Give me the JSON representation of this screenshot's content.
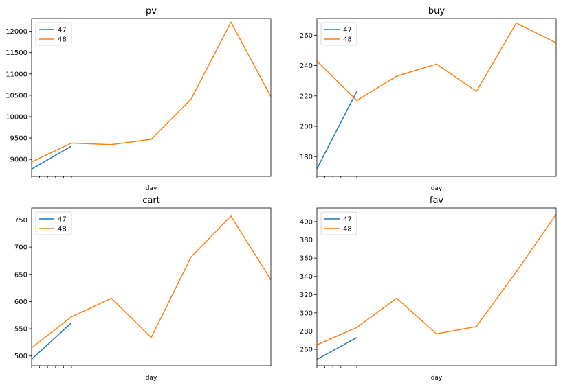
{
  "chart_data": [
    {
      "type": "line",
      "title": "pv",
      "xlabel": "day",
      "ylabel": "",
      "ylim": [
        8600,
        12300
      ],
      "yticks": [
        9000,
        9500,
        10000,
        10500,
        11000,
        11500,
        12000
      ],
      "legend": "top-left",
      "series": [
        {
          "name": "47",
          "color": "#1f77b4",
          "x": [
            0,
            1
          ],
          "y": [
            8770,
            9310
          ]
        },
        {
          "name": "48",
          "color": "#ff7f0e",
          "x": [
            0,
            1,
            2,
            3,
            4,
            5,
            6
          ],
          "y": [
            8940,
            9380,
            9345,
            9470,
            10410,
            12215,
            10470
          ]
        }
      ]
    },
    {
      "type": "line",
      "title": "buy",
      "xlabel": "day",
      "ylabel": "",
      "ylim": [
        167,
        271
      ],
      "yticks": [
        180,
        200,
        220,
        240,
        260
      ],
      "legend": "top-left",
      "series": [
        {
          "name": "47",
          "color": "#1f77b4",
          "x": [
            0,
            1
          ],
          "y": [
            172,
            223
          ]
        },
        {
          "name": "48",
          "color": "#ff7f0e",
          "x": [
            0,
            1,
            2,
            3,
            4,
            5,
            6
          ],
          "y": [
            243,
            217,
            233,
            241,
            223,
            268,
            255
          ]
        }
      ]
    },
    {
      "type": "line",
      "title": "cart",
      "xlabel": "day",
      "ylabel": "",
      "ylim": [
        482,
        772
      ],
      "yticks": [
        500,
        550,
        600,
        650,
        700,
        750
      ],
      "legend": "top-left",
      "series": [
        {
          "name": "47",
          "color": "#1f77b4",
          "x": [
            0,
            1
          ],
          "y": [
            494,
            561
          ]
        },
        {
          "name": "48",
          "color": "#ff7f0e",
          "x": [
            0,
            1,
            2,
            3,
            4,
            5,
            6
          ],
          "y": [
            515,
            572,
            606,
            534,
            682,
            757,
            640
          ]
        }
      ]
    },
    {
      "type": "line",
      "title": "fav",
      "xlabel": "day",
      "ylabel": "",
      "ylim": [
        242,
        415
      ],
      "yticks": [
        260,
        280,
        300,
        320,
        340,
        360,
        380,
        400
      ],
      "legend": "top-left",
      "series": [
        {
          "name": "47",
          "color": "#1f77b4",
          "x": [
            0,
            1
          ],
          "y": [
            249,
            273
          ]
        },
        {
          "name": "48",
          "color": "#ff7f0e",
          "x": [
            0,
            1,
            2,
            3,
            4,
            5,
            6
          ],
          "y": [
            265,
            284,
            316,
            277,
            285,
            345,
            408
          ]
        }
      ]
    }
  ]
}
